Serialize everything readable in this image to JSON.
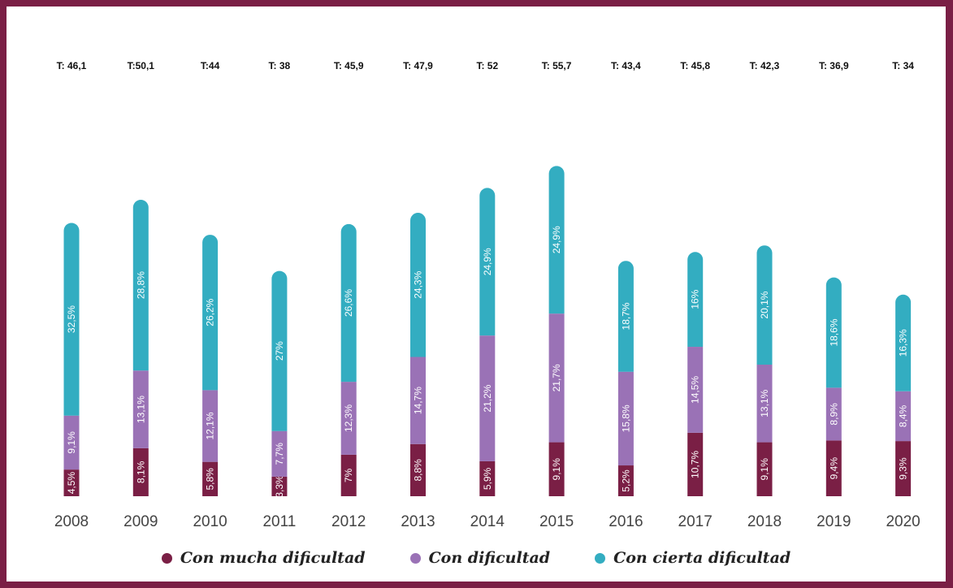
{
  "chart_data": {
    "type": "bar",
    "stacked": true,
    "categories": [
      "2008",
      "2009",
      "2010",
      "2011",
      "2012",
      "2013",
      "2014",
      "2015",
      "2016",
      "2017",
      "2018",
      "2019",
      "2020"
    ],
    "totals_labels": [
      "T: 46,1",
      "T:50,1",
      "T:44",
      "T: 38",
      "T: 45,9",
      "T: 47,9",
      "T: 52",
      "T: 55,7",
      "T: 43,4",
      "T: 45,8",
      "T: 42,3",
      "T: 36,9",
      "T:  34"
    ],
    "series": [
      {
        "name": "Con mucha dificultad",
        "color": "#7a1f45",
        "values": [
          4.5,
          8.1,
          5.8,
          3.3,
          7,
          8.8,
          5.9,
          9.1,
          5.2,
          10.7,
          9.1,
          9.4,
          9.3
        ],
        "labels": [
          "4,5%",
          "8,1%",
          "5,8%",
          "3,3%",
          "7%",
          "8,8%",
          "5,9%",
          "9,1%",
          "5,2%",
          "10,7%",
          "9,1%",
          "9,4%",
          "9,3%"
        ]
      },
      {
        "name": "Con dificultad",
        "color": "#9a72b6",
        "values": [
          9.1,
          13.1,
          12.1,
          7.7,
          12.3,
          14.7,
          21.2,
          21.7,
          15.8,
          14.5,
          13.1,
          8.9,
          8.4
        ],
        "labels": [
          "9,1%",
          "13,1%",
          "12,1%",
          "7,7%",
          "12,3%",
          "14,7%",
          "21,2%",
          "21,7%",
          "15,8%",
          "14,5%",
          "13,1%",
          "8,9%",
          "8,4%"
        ]
      },
      {
        "name": "Con cierta dificultad",
        "color": "#33adc1",
        "values": [
          32.5,
          28.8,
          26.2,
          27,
          26.6,
          24.3,
          24.9,
          24.9,
          18.7,
          16,
          20.1,
          18.6,
          16.3
        ],
        "labels": [
          "32,5%",
          "28,8%",
          "26,2%",
          "27%",
          "26,6%",
          "24,3%",
          "24,9%",
          "24,9%",
          "18,7%",
          "16%",
          "20,1%",
          "18,6%",
          "16,3%"
        ]
      }
    ],
    "grid": false,
    "legend": "bottom"
  }
}
